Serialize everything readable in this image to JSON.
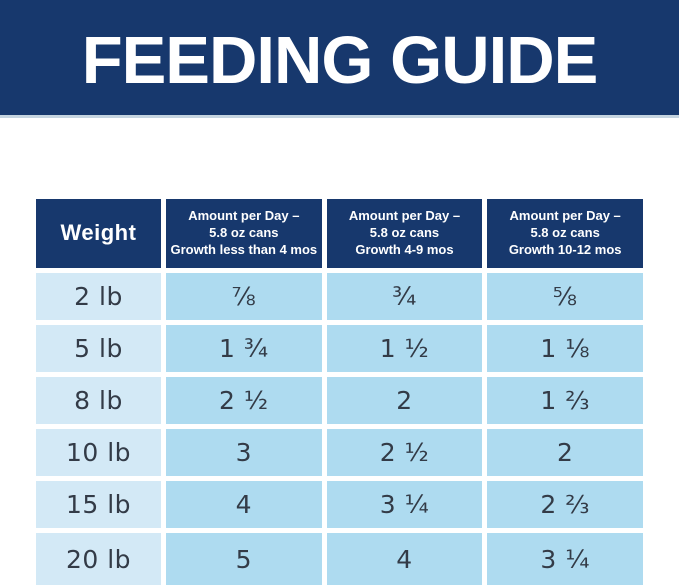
{
  "banner": {
    "title": "FEEDING GUIDE"
  },
  "colors": {
    "navy": "#17386D",
    "banner_underline": "#C5D4E0",
    "weight_cell_bg": "#D3E9F6",
    "amount_cell_bg": "#AEDBF0",
    "cell_text": "#333B47",
    "header_text": "#FFFFFF"
  },
  "table": {
    "header": {
      "weight_label": "Weight",
      "columns": [
        {
          "line1": "Amount per Day –",
          "line2": "5.8 oz cans",
          "line3": "Growth less than 4 mos"
        },
        {
          "line1": "Amount per Day –",
          "line2": "5.8 oz cans",
          "line3": "Growth 4-9 mos"
        },
        {
          "line1": "Amount per Day –",
          "line2": "5.8 oz cans",
          "line3": "Growth 10-12 mos"
        }
      ]
    },
    "rows": [
      {
        "weight": "2 lb",
        "v1": "⅞",
        "v2": "¾",
        "v3": "⅝"
      },
      {
        "weight": "5 lb",
        "v1": "1 ¾",
        "v2": "1 ½",
        "v3": "1 ⅛"
      },
      {
        "weight": "8 lb",
        "v1": "2 ½",
        "v2": "2",
        "v3": "1 ⅔"
      },
      {
        "weight": "10 lb",
        "v1": "3",
        "v2": "2 ½",
        "v3": "2"
      },
      {
        "weight": "15 lb",
        "v1": "4",
        "v2": "3 ¼",
        "v3": "2 ⅔"
      },
      {
        "weight": "20 lb",
        "v1": "5",
        "v2": "4",
        "v3": "3 ¼"
      }
    ]
  },
  "chart_data": {
    "type": "table",
    "title": "FEEDING GUIDE",
    "columns": [
      "Weight",
      "Amount per Day – 5.8 oz cans Growth less than 4 mos",
      "Amount per Day – 5.8 oz cans Growth 4-9 mos",
      "Amount per Day – 5.8 oz cans Growth 10-12 mos"
    ],
    "rows": [
      [
        "2 lb",
        "7/8",
        "3/4",
        "5/8"
      ],
      [
        "5 lb",
        "1 3/4",
        "1 1/2",
        "1 1/8"
      ],
      [
        "8 lb",
        "2 1/2",
        "2",
        "1 2/3"
      ],
      [
        "10 lb",
        "3",
        "2 1/2",
        "2"
      ],
      [
        "15 lb",
        "4",
        "3 1/4",
        "2 2/3"
      ],
      [
        "20 lb",
        "5",
        "4",
        "3 1/4"
      ]
    ]
  }
}
